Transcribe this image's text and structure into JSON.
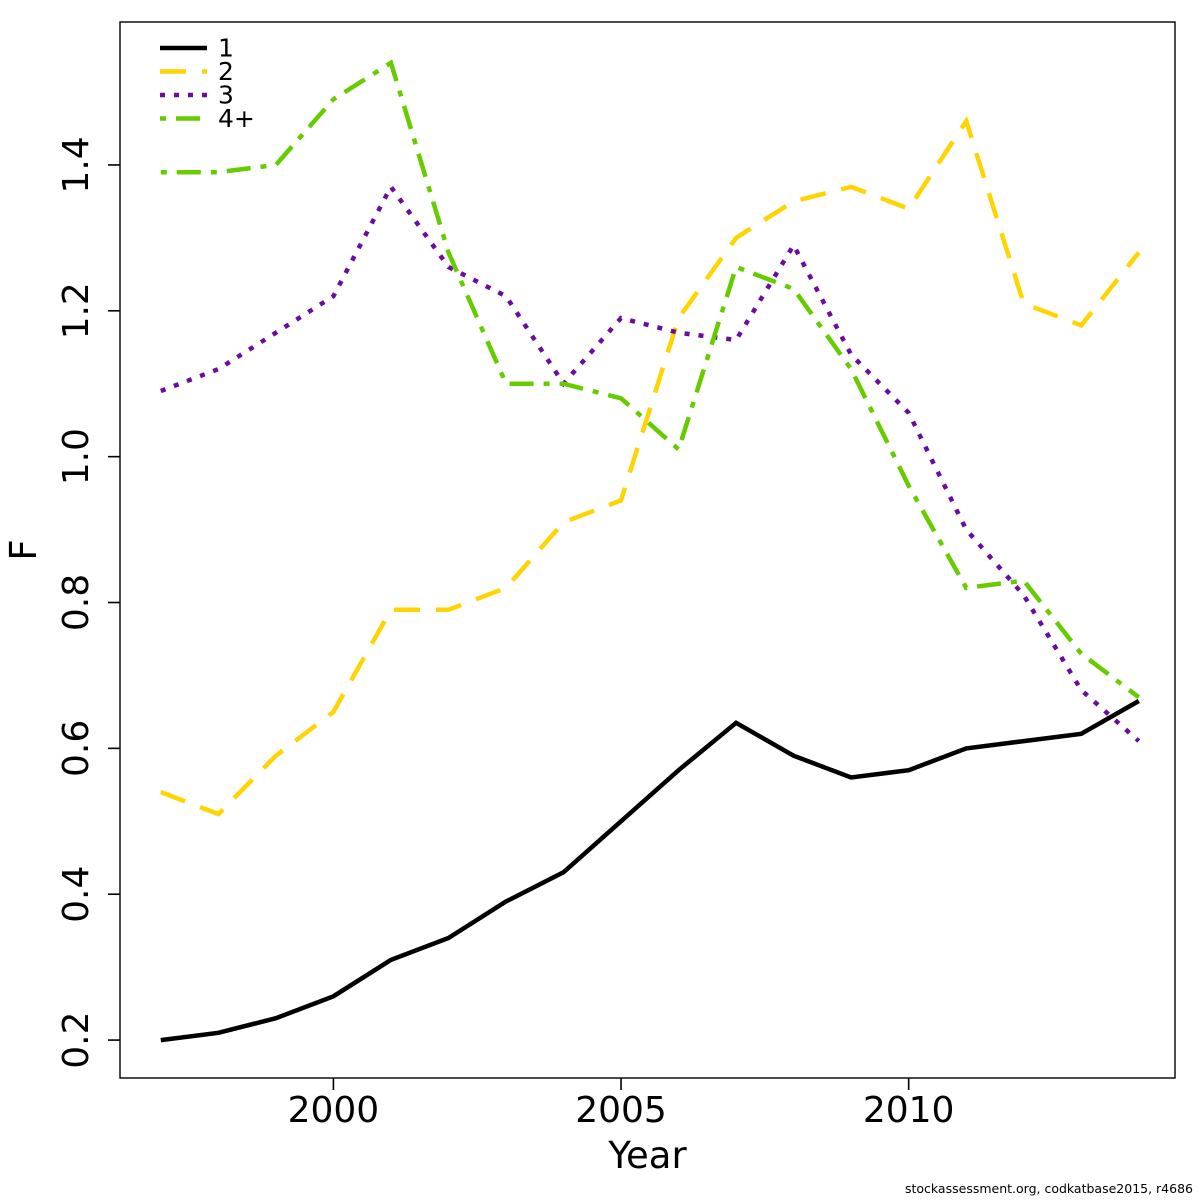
{
  "page": {
    "attribution": "stockassessment.org, codkatbase2015, r4686"
  },
  "chart_data": {
    "type": "line",
    "title": "",
    "xlabel": "Year",
    "ylabel": "F",
    "x": [
      1997,
      1998,
      1999,
      2000,
      2001,
      2002,
      2003,
      2004,
      2005,
      2006,
      2007,
      2008,
      2009,
      2010,
      2011,
      2012,
      2013,
      2014
    ],
    "xticks": [
      "2000",
      "2005",
      "2010"
    ],
    "xtick_values": [
      2000,
      2005,
      2010
    ],
    "yticks": [
      "0.2",
      "0.4",
      "0.6",
      "0.8",
      "1.0",
      "1.2",
      "1.4"
    ],
    "ytick_values": [
      0.2,
      0.4,
      0.6,
      0.8,
      1.0,
      1.2,
      1.4
    ],
    "xlim": [
      1996.29,
      2014.63
    ],
    "ylim": [
      0.148,
      1.596
    ],
    "grid": "off",
    "legend_position": "top-left",
    "legend": [
      "1",
      "2",
      "3",
      "4+"
    ],
    "series": [
      {
        "name": "1",
        "color": "#000000",
        "linetype": "solid",
        "values": [
          0.2,
          0.21,
          0.23,
          0.26,
          0.31,
          0.34,
          0.39,
          0.43,
          0.5,
          0.57,
          0.635,
          0.59,
          0.56,
          0.57,
          0.6,
          0.61,
          0.62,
          0.665
        ]
      },
      {
        "name": "2",
        "color": "#ffd400",
        "linetype": "dashed",
        "values": [
          0.54,
          0.51,
          0.59,
          0.65,
          0.79,
          0.79,
          0.82,
          0.91,
          0.94,
          1.19,
          1.3,
          1.35,
          1.37,
          1.34,
          1.46,
          1.21,
          1.18,
          1.28
        ]
      },
      {
        "name": "3",
        "color": "#6a0d9e",
        "linetype": "dotted",
        "values": [
          1.09,
          1.12,
          1.17,
          1.22,
          1.37,
          1.26,
          1.22,
          1.1,
          1.19,
          1.17,
          1.16,
          1.29,
          1.14,
          1.06,
          0.9,
          0.81,
          0.68,
          0.61
        ]
      },
      {
        "name": "4+",
        "color": "#66cc00",
        "linetype": "dotdash",
        "values": [
          1.39,
          1.39,
          1.4,
          1.49,
          1.54,
          1.28,
          1.1,
          1.1,
          1.08,
          1.01,
          1.26,
          1.23,
          1.12,
          0.96,
          0.82,
          0.83,
          0.73,
          0.67
        ]
      }
    ]
  }
}
